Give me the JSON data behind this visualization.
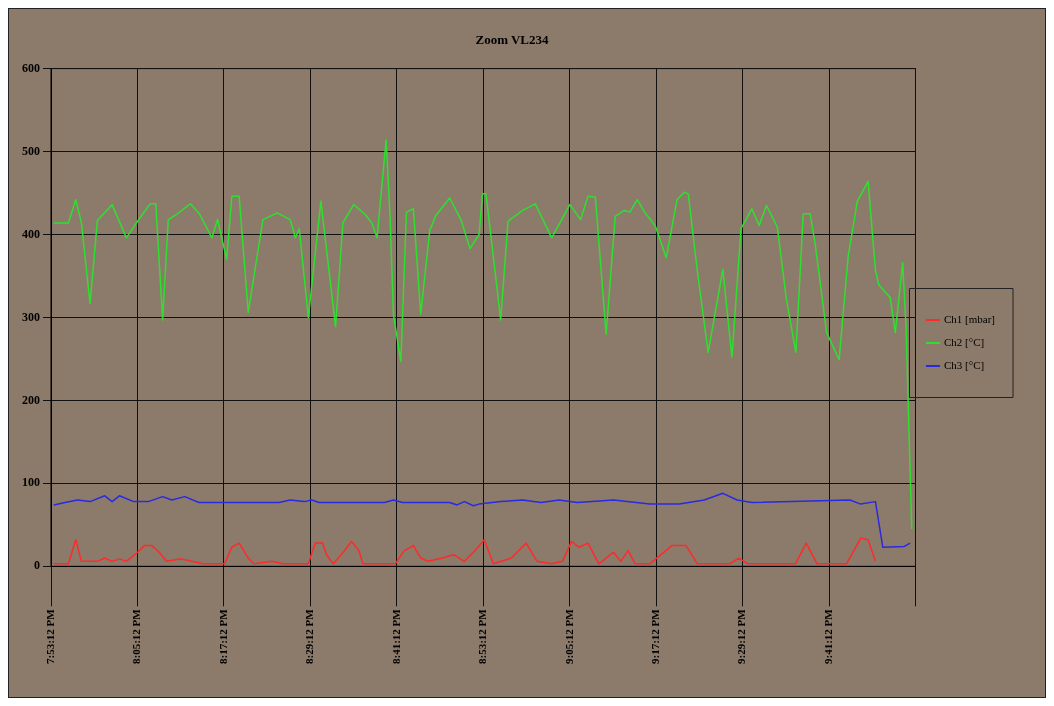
{
  "chart_data": {
    "type": "line",
    "title": "Zoom VL234",
    "xlim": [
      19.88667,
      21.88667
    ],
    "xticks": [
      {
        "value": 19.88667,
        "label": "7:53:12 PM"
      },
      {
        "value": 20.08667,
        "label": "8:05:12 PM"
      },
      {
        "value": 20.28667,
        "label": "8:17:12 PM"
      },
      {
        "value": 20.48667,
        "label": "8:29:12 PM"
      },
      {
        "value": 20.68667,
        "label": "8:41:12 PM"
      },
      {
        "value": 20.88667,
        "label": "8:53:12 PM"
      },
      {
        "value": 21.08667,
        "label": "9:05:12 PM"
      },
      {
        "value": 21.28667,
        "label": "9:17:12 PM"
      },
      {
        "value": 21.48667,
        "label": "9:29:12 PM"
      },
      {
        "value": 21.68667,
        "label": "9:41:12 PM"
      },
      {
        "value": 21.88667,
        "label": null
      }
    ],
    "ylim": [
      0,
      600
    ],
    "yticks": [
      0,
      100,
      200,
      300,
      400,
      500,
      600
    ],
    "grid": true,
    "legend": "right",
    "marker": "none",
    "line_style": "solid",
    "series": [
      {
        "name": "Ch1 [mbar]",
        "color": "#ff2a2a",
        "x": [
          19.893,
          19.927,
          19.944,
          19.957,
          19.994,
          20.011,
          20.028,
          20.045,
          20.061,
          20.087,
          20.103,
          20.12,
          20.137,
          20.154,
          20.188,
          20.213,
          20.238,
          20.288,
          20.305,
          20.322,
          20.343,
          20.356,
          20.398,
          20.423,
          20.482,
          20.498,
          20.515,
          20.524,
          20.54,
          20.566,
          20.582,
          20.599,
          20.608,
          20.683,
          20.704,
          20.725,
          20.742,
          20.759,
          20.792,
          20.818,
          20.843,
          20.868,
          20.889,
          20.91,
          20.952,
          20.986,
          21.011,
          21.045,
          21.07,
          21.091,
          21.108,
          21.129,
          21.154,
          21.188,
          21.205,
          21.222,
          21.238,
          21.272,
          21.323,
          21.356,
          21.382,
          21.457,
          21.478,
          21.499,
          21.609,
          21.634,
          21.659,
          21.727,
          21.76,
          21.777,
          21.794
        ],
        "values": [
          3,
          3,
          32,
          6,
          6,
          10,
          6,
          9,
          6,
          17,
          25,
          25,
          17,
          6,
          9,
          6,
          3,
          3,
          23,
          28,
          10,
          3,
          6,
          3,
          3,
          28,
          28,
          14,
          3,
          19,
          30,
          19,
          3,
          3,
          19,
          25,
          10,
          6,
          10,
          14,
          6,
          19,
          32,
          3,
          10,
          28,
          6,
          3,
          6,
          30,
          23,
          28,
          3,
          17,
          6,
          19,
          3,
          3,
          25,
          25,
          3,
          3,
          10,
          3,
          3,
          28,
          3,
          3,
          34,
          32,
          6
        ]
      },
      {
        "name": "Ch2 [°C]",
        "color": "#2ee02e",
        "x": [
          19.893,
          19.927,
          19.944,
          19.957,
          19.977,
          19.994,
          20.028,
          20.061,
          20.087,
          20.116,
          20.129,
          20.145,
          20.158,
          20.179,
          20.209,
          20.23,
          20.259,
          20.272,
          20.28,
          20.293,
          20.305,
          20.322,
          20.343,
          20.377,
          20.41,
          20.44,
          20.452,
          20.461,
          20.482,
          20.511,
          20.545,
          20.562,
          20.587,
          20.612,
          20.629,
          20.641,
          20.662,
          20.671,
          20.679,
          20.696,
          20.709,
          20.725,
          20.742,
          20.763,
          20.776,
          20.809,
          20.835,
          20.856,
          20.877,
          20.885,
          20.893,
          20.927,
          20.944,
          20.978,
          21.007,
          21.045,
          21.087,
          21.112,
          21.129,
          21.146,
          21.171,
          21.192,
          21.213,
          21.226,
          21.243,
          21.26,
          21.285,
          21.31,
          21.335,
          21.352,
          21.361,
          21.382,
          21.407,
          21.441,
          21.462,
          21.483,
          21.508,
          21.525,
          21.542,
          21.567,
          21.588,
          21.61,
          21.627,
          21.643,
          21.655,
          21.681,
          21.71,
          21.731,
          21.752,
          21.777,
          21.794,
          21.802,
          21.828,
          21.84,
          21.857,
          21.865,
          21.878
        ],
        "values": [
          414,
          414,
          442,
          414,
          317,
          417,
          436,
          396,
          416,
          437,
          437,
          297,
          418,
          425,
          437,
          425,
          396,
          418,
          400,
          370,
          446,
          446,
          306,
          418,
          426,
          418,
          396,
          407,
          300,
          440,
          289,
          414,
          436,
          425,
          414,
          396,
          514,
          422,
          303,
          247,
          427,
          431,
          304,
          405,
          422,
          444,
          418,
          383,
          400,
          449,
          449,
          297,
          416,
          429,
          437,
          396,
          436,
          418,
          446,
          445,
          280,
          422,
          429,
          427,
          442,
          427,
          410,
          372,
          442,
          451,
          449,
          356,
          258,
          358,
          252,
          407,
          431,
          411,
          435,
          409,
          322,
          258,
          425,
          425,
          387,
          282,
          249,
          374,
          440,
          464,
          357,
          339,
          324,
          282,
          366,
          287,
          45
        ]
      },
      {
        "name": "Ch3 [°C]",
        "color": "#2a2ae0",
        "x": [
          19.893,
          19.919,
          19.948,
          19.977,
          20.011,
          20.028,
          20.045,
          20.078,
          20.112,
          20.145,
          20.166,
          20.196,
          20.229,
          20.414,
          20.44,
          20.473,
          20.49,
          20.507,
          20.658,
          20.679,
          20.7,
          20.809,
          20.826,
          20.843,
          20.864,
          20.877,
          20.927,
          20.978,
          21.02,
          21.062,
          21.104,
          21.188,
          21.272,
          21.34,
          21.398,
          21.441,
          21.474,
          21.508,
          21.735,
          21.76,
          21.794,
          21.811,
          21.861,
          21.874
        ],
        "values": [
          74,
          77,
          80,
          78,
          85,
          78,
          85,
          78,
          78,
          84,
          80,
          84,
          77,
          77,
          80,
          78,
          80,
          77,
          77,
          80,
          77,
          77,
          74,
          78,
          73,
          75,
          78,
          80,
          77,
          80,
          77,
          80,
          75,
          75,
          80,
          88,
          80,
          77,
          80,
          75,
          78,
          23,
          24,
          28
        ]
      }
    ]
  }
}
